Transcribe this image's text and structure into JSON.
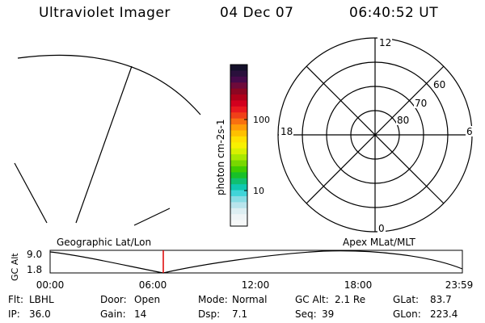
{
  "header": {
    "title": "Ultraviolet Imager",
    "date": "04 Dec 07",
    "time": "06:40:52 UT"
  },
  "colorbar": {
    "unit_label": "photon cm-2s-1",
    "tick_labels": [
      "100",
      "10"
    ],
    "colors": [
      "#14102a",
      "#2a103c",
      "#460a4a",
      "#6e0a3a",
      "#8c0622",
      "#b0001a",
      "#d2001e",
      "#e8181e",
      "#f04018",
      "#f87010",
      "#ff9c08",
      "#ffc000",
      "#ffe000",
      "#f8f000",
      "#d8f000",
      "#a8e800",
      "#78d800",
      "#40cc00",
      "#18c028",
      "#10c070",
      "#10c8b0",
      "#40d4d8",
      "#88dce4",
      "#b8e4ec",
      "#dceef2",
      "#eef4f6",
      "#f6f8f8"
    ]
  },
  "polar_plot": {
    "mlt_labels": {
      "top": "12",
      "left": "18",
      "right": "6",
      "bottom": "0"
    },
    "lat_labels": [
      "60",
      "70",
      "80"
    ]
  },
  "map_labels": {
    "geographic": "Geographic Lat/Lon",
    "apex": "Apex MLat/MLT"
  },
  "altitude_plot": {
    "ylabel": "GC Alt",
    "y_ticks": [
      "9.0",
      "1.8"
    ],
    "x_ticks": [
      "00:00",
      "06:00",
      "12:00",
      "18:00",
      "23:59"
    ],
    "marker_color": "#dd0000"
  },
  "info": {
    "filter_label": "Flt:",
    "filter_value": "LBHL",
    "ip_label": "IP:",
    "ip_value": "36.0",
    "door_label": "Door:",
    "door_value": "Open",
    "gain_label": "Gain:",
    "gain_value": "14",
    "mode_label": "Mode:",
    "mode_value": "Normal",
    "dsp_label": "Dsp:",
    "dsp_value": "7.1",
    "gcalt_label": "GC Alt:",
    "gcalt_value": "2.1 Re",
    "seq_label": "Seq:",
    "seq_value": "39",
    "glat_label": "GLat:",
    "glat_value": "83.7",
    "glon_label": "GLon:",
    "glon_value": "223.4"
  }
}
